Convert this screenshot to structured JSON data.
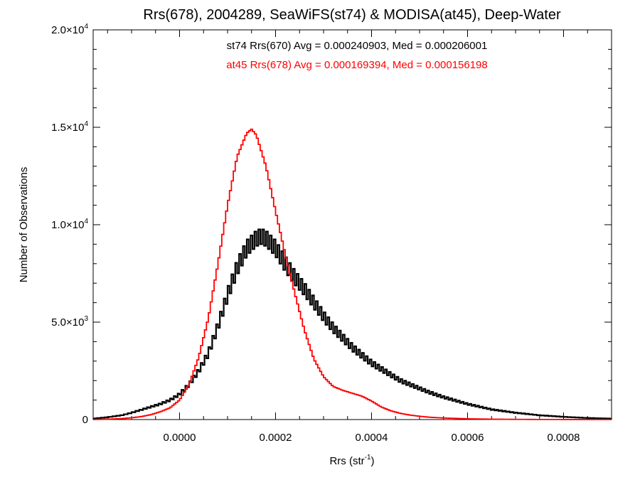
{
  "chart_data": {
    "type": "line",
    "title": "Rrs(678), 2004289, SeaWiFS(st74) & MODISA(at45), Deep-Water",
    "xlabel_main": "Rrs (str",
    "xlabel_sup": "-1",
    "xlabel_tail": ")",
    "ylabel": "Number of Observations",
    "xlim": [
      -0.00018,
      0.0009
    ],
    "ylim": [
      0,
      20000
    ],
    "grid": false,
    "x_ticks": [
      0.0,
      0.0002,
      0.0004,
      0.0006,
      0.0008
    ],
    "x_tick_labels": [
      "0.0000",
      "0.0002",
      "0.0004",
      "0.0006",
      "0.0008"
    ],
    "y_ticks": [
      {
        "value": 0,
        "mant": "0",
        "exp": ""
      },
      {
        "value": 5000,
        "mant": "5.0×10",
        "exp": "3"
      },
      {
        "value": 10000,
        "mant": "1.0×10",
        "exp": "4"
      },
      {
        "value": 15000,
        "mant": "1.5×10",
        "exp": "4"
      },
      {
        "value": 20000,
        "mant": "2.0×10",
        "exp": "4"
      }
    ],
    "annotations": [
      {
        "text": "st74 Rrs(670) Avg = 0.000240903, Med = 0.000206001",
        "color": "#000000"
      },
      {
        "text": "at45 Rrs(678) Avg = 0.000169394, Med = 0.000156198",
        "color": "#ff0000"
      }
    ],
    "series": [
      {
        "color": "#000000",
        "x": [
          -0.00018,
          -0.00015,
          -0.00012,
          -0.0001,
          -8e-05,
          -6e-05,
          -4e-05,
          -2e-05,
          0.0,
          2e-05,
          4e-05,
          6e-05,
          8e-05,
          0.0001,
          0.00012,
          0.00014,
          0.00016,
          0.00017,
          0.00018,
          0.0002,
          0.00022,
          0.00024,
          0.00026,
          0.00028,
          0.0003,
          0.00032,
          0.00034,
          0.00036,
          0.00038,
          0.0004,
          0.00042,
          0.00044,
          0.00046,
          0.00048,
          0.0005,
          0.00052,
          0.00055,
          0.0006,
          0.00065,
          0.0007,
          0.00075,
          0.0008,
          0.00085,
          0.0009
        ],
        "y": [
          50,
          120,
          220,
          350,
          500,
          650,
          800,
          1000,
          1300,
          1800,
          2500,
          3400,
          4800,
          6400,
          7800,
          8800,
          9300,
          9400,
          9300,
          8800,
          8000,
          7300,
          6700,
          6000,
          5300,
          4700,
          4200,
          3700,
          3300,
          2900,
          2600,
          2300,
          2000,
          1800,
          1600,
          1400,
          1150,
          800,
          520,
          350,
          220,
          140,
          80,
          50
        ]
      },
      {
        "color": "#ff0000",
        "x": [
          -0.00018,
          -0.00015,
          -0.00012,
          -0.0001,
          -8e-05,
          -6e-05,
          -4e-05,
          -2e-05,
          0.0,
          2e-05,
          4e-05,
          6e-05,
          8e-05,
          0.0001,
          0.00012,
          0.00014,
          0.00015,
          0.00016,
          0.00018,
          0.0002,
          0.00022,
          0.00024,
          0.00026,
          0.00028,
          0.0003,
          0.00032,
          0.00034,
          0.00036,
          0.00038,
          0.0004,
          0.00042,
          0.00044,
          0.00046,
          0.00048,
          0.0005,
          0.00052,
          0.00055,
          0.0006,
          0.00065,
          0.0007,
          0.00075,
          0.0008,
          0.00085,
          0.0009
        ],
        "y": [
          0,
          20,
          50,
          90,
          150,
          250,
          400,
          600,
          1000,
          1800,
          3200,
          5200,
          8000,
          11000,
          13500,
          14700,
          14900,
          14600,
          13000,
          10700,
          8500,
          6500,
          4600,
          3100,
          2200,
          1700,
          1500,
          1350,
          1200,
          950,
          650,
          450,
          320,
          230,
          170,
          120,
          80,
          40,
          20,
          10,
          5,
          3,
          2,
          0
        ]
      }
    ]
  }
}
